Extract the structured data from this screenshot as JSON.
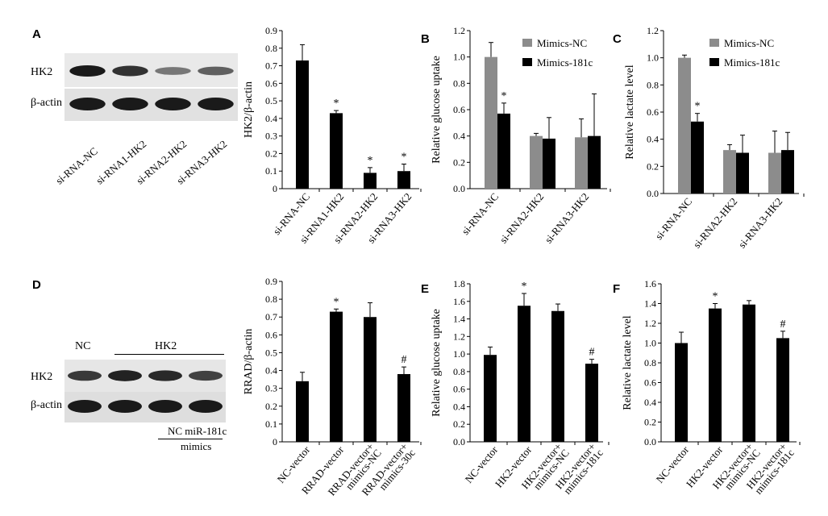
{
  "panels": {
    "A": {
      "letter": "A",
      "blot": {
        "row_labels": [
          "HK2",
          "β-actin"
        ],
        "lane_labels": [
          "si-RNA-NC",
          "si-RNA1-HK2",
          "si-RNA2-HK2",
          "si-RNA3-HK2"
        ],
        "hk2_band_intensity": [
          1.0,
          0.85,
          0.4,
          0.55
        ]
      }
    },
    "D": {
      "letter": "D",
      "blot": {
        "row_labels": [
          "HK2",
          "β-actin"
        ],
        "group_labels": [
          "NC",
          "HK2"
        ],
        "lane_bottom_labels": [
          "NC miR-181c",
          "mimics"
        ],
        "hk2_band_intensity": [
          0.8,
          0.95,
          0.9,
          0.75
        ]
      }
    },
    "B": {
      "letter": "B"
    },
    "C": {
      "letter": "C"
    },
    "E": {
      "letter": "E"
    },
    "F": {
      "letter": "F"
    }
  },
  "colors": {
    "black": "#000000",
    "gray": "#8c8c8c",
    "band": "#1a1a1a"
  },
  "chart_data": [
    {
      "id": "A-bar",
      "type": "bar",
      "ylabel": "HK2/β-actin",
      "ylim": [
        0,
        0.9
      ],
      "yticks": [
        "0",
        "0.1",
        "0.2",
        "0.3",
        "0.4",
        "0.5",
        "0.6",
        "0.7",
        "0.8",
        "0.9"
      ],
      "categories": [
        "si-RNA-NC",
        "si-RNA1-HK2",
        "si-RNA2-HK2",
        "si-RNA3-HK2"
      ],
      "series": [
        {
          "values": [
            0.73,
            0.43,
            0.09,
            0.1
          ],
          "errors": [
            0.09,
            0.015,
            0.03,
            0.04
          ],
          "color": "#000000"
        }
      ],
      "annotations": [
        "",
        "*",
        "*",
        "*"
      ]
    },
    {
      "id": "B-bar",
      "type": "bar",
      "ylabel": "Relative glucose uptake",
      "ylim": [
        0,
        1.2
      ],
      "yticks": [
        "0.0",
        "0.2",
        "0.4",
        "0.6",
        "0.8",
        "1.0",
        "1.2"
      ],
      "categories": [
        "si-RNA-NC",
        "si-RNA2-HK2",
        "si-RNA3-HK2"
      ],
      "series": [
        {
          "name": "Mimics-NC",
          "values": [
            1.0,
            0.4,
            0.39
          ],
          "errors": [
            0.11,
            0.02,
            0.14
          ],
          "color": "#8c8c8c"
        },
        {
          "name": "Mimics-181c",
          "values": [
            0.57,
            0.38,
            0.4
          ],
          "errors": [
            0.08,
            0.16,
            0.32
          ],
          "color": "#000000"
        }
      ],
      "annotations": [
        [
          "",
          "*"
        ],
        [
          "",
          ""
        ],
        [
          "",
          ""
        ]
      ],
      "legend": "top-right"
    },
    {
      "id": "C-bar",
      "type": "bar",
      "ylabel": "Relative lactate level",
      "ylim": [
        0,
        1.2
      ],
      "yticks": [
        "0.0",
        "0.2",
        "0.4",
        "0.6",
        "0.8",
        "1.0",
        "1.2"
      ],
      "categories": [
        "si-RNA-NC",
        "si-RNA2-HK2",
        "si-RNA3-HK2"
      ],
      "series": [
        {
          "name": "Mimics-NC",
          "values": [
            1.0,
            0.32,
            0.3
          ],
          "errors": [
            0.02,
            0.04,
            0.16
          ],
          "color": "#8c8c8c"
        },
        {
          "name": "Mimics-181c",
          "values": [
            0.53,
            0.3,
            0.32
          ],
          "errors": [
            0.06,
            0.13,
            0.13
          ],
          "color": "#000000"
        }
      ],
      "annotations": [
        [
          "",
          "*"
        ],
        [
          "",
          ""
        ],
        [
          "",
          ""
        ]
      ],
      "legend": "top-right"
    },
    {
      "id": "D-bar",
      "type": "bar",
      "ylabel": "RRAD/β-actin",
      "ylim": [
        0,
        0.9
      ],
      "yticks": [
        "0",
        "0.1",
        "0.2",
        "0.3",
        "0.4",
        "0.5",
        "0.6",
        "0.7",
        "0.8",
        "0.9"
      ],
      "categories": [
        "NC-vector",
        "RRAD-vector",
        "RRAD-vector+\nmimics-NC",
        "RRAD-vector+\nmimics-30c"
      ],
      "series": [
        {
          "values": [
            0.34,
            0.73,
            0.7,
            0.38
          ],
          "errors": [
            0.05,
            0.015,
            0.08,
            0.04
          ],
          "color": "#000000"
        }
      ],
      "annotations": [
        "",
        "*",
        "",
        "#"
      ]
    },
    {
      "id": "E-bar",
      "type": "bar",
      "ylabel": "Relative glucose uptake",
      "ylim": [
        0,
        1.8
      ],
      "yticks": [
        "0.0",
        "0.2",
        "0.4",
        "0.6",
        "0.8",
        "1.0",
        "1.2",
        "1.4",
        "1.6",
        "1.8"
      ],
      "categories": [
        "NC-vector",
        "HK2-vector",
        "HK2-vector+\nmimics-NC",
        "HK2-vector+\nmimics-181c"
      ],
      "series": [
        {
          "values": [
            0.99,
            1.55,
            1.49,
            0.89
          ],
          "errors": [
            0.09,
            0.14,
            0.08,
            0.05
          ],
          "color": "#000000"
        }
      ],
      "annotations": [
        "",
        "*",
        "",
        "#"
      ]
    },
    {
      "id": "F-bar",
      "type": "bar",
      "ylabel": "Relative lactate level",
      "ylim": [
        0,
        1.6
      ],
      "yticks": [
        "0.0",
        "0.2",
        "0.4",
        "0.6",
        "0.8",
        "1.0",
        "1.2",
        "1.4",
        "1.6"
      ],
      "categories": [
        "NC-vector",
        "HK2-vector",
        "HK2-vector+\nmimics-NC",
        "HK2-vector+\nmimics-181c"
      ],
      "series": [
        {
          "values": [
            1.0,
            1.35,
            1.39,
            1.05
          ],
          "errors": [
            0.11,
            0.05,
            0.04,
            0.07
          ],
          "color": "#000000"
        }
      ],
      "annotations": [
        "",
        "*",
        "",
        "#"
      ]
    }
  ]
}
